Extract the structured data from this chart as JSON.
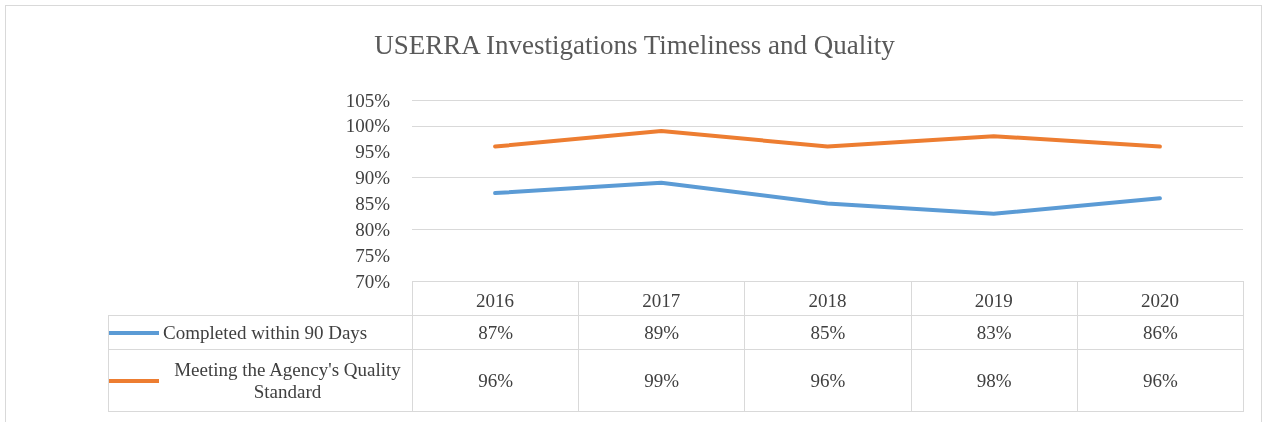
{
  "chart_data": {
    "type": "line",
    "title": "USERRA Investigations Timeliness and Quality",
    "categories": [
      "2016",
      "2017",
      "2018",
      "2019",
      "2020"
    ],
    "series": [
      {
        "name": "Completed within 90 Days",
        "color": "#5b9bd5",
        "values": [
          87,
          89,
          85,
          83,
          86
        ],
        "value_labels": [
          "87%",
          "89%",
          "85%",
          "83%",
          "86%"
        ]
      },
      {
        "name": "Meeting the Agency's Quality Standard",
        "color": "#ed7d31",
        "values": [
          96,
          99,
          96,
          98,
          96
        ],
        "value_labels": [
          "96%",
          "99%",
          "96%",
          "98%",
          "96%"
        ]
      }
    ],
    "ylim": [
      70,
      105
    ],
    "yticks": [
      {
        "value": 70,
        "label": "70%"
      },
      {
        "value": 75,
        "label": "75%"
      },
      {
        "value": 80,
        "label": "80%"
      },
      {
        "value": 85,
        "label": "85%"
      },
      {
        "value": 90,
        "label": "90%"
      },
      {
        "value": 95,
        "label": "95%"
      },
      {
        "value": 100,
        "label": "100%"
      },
      {
        "value": 105,
        "label": "105%"
      }
    ],
    "grid": "y",
    "legend": "bottom",
    "marker": "none",
    "line_style": "solid"
  }
}
